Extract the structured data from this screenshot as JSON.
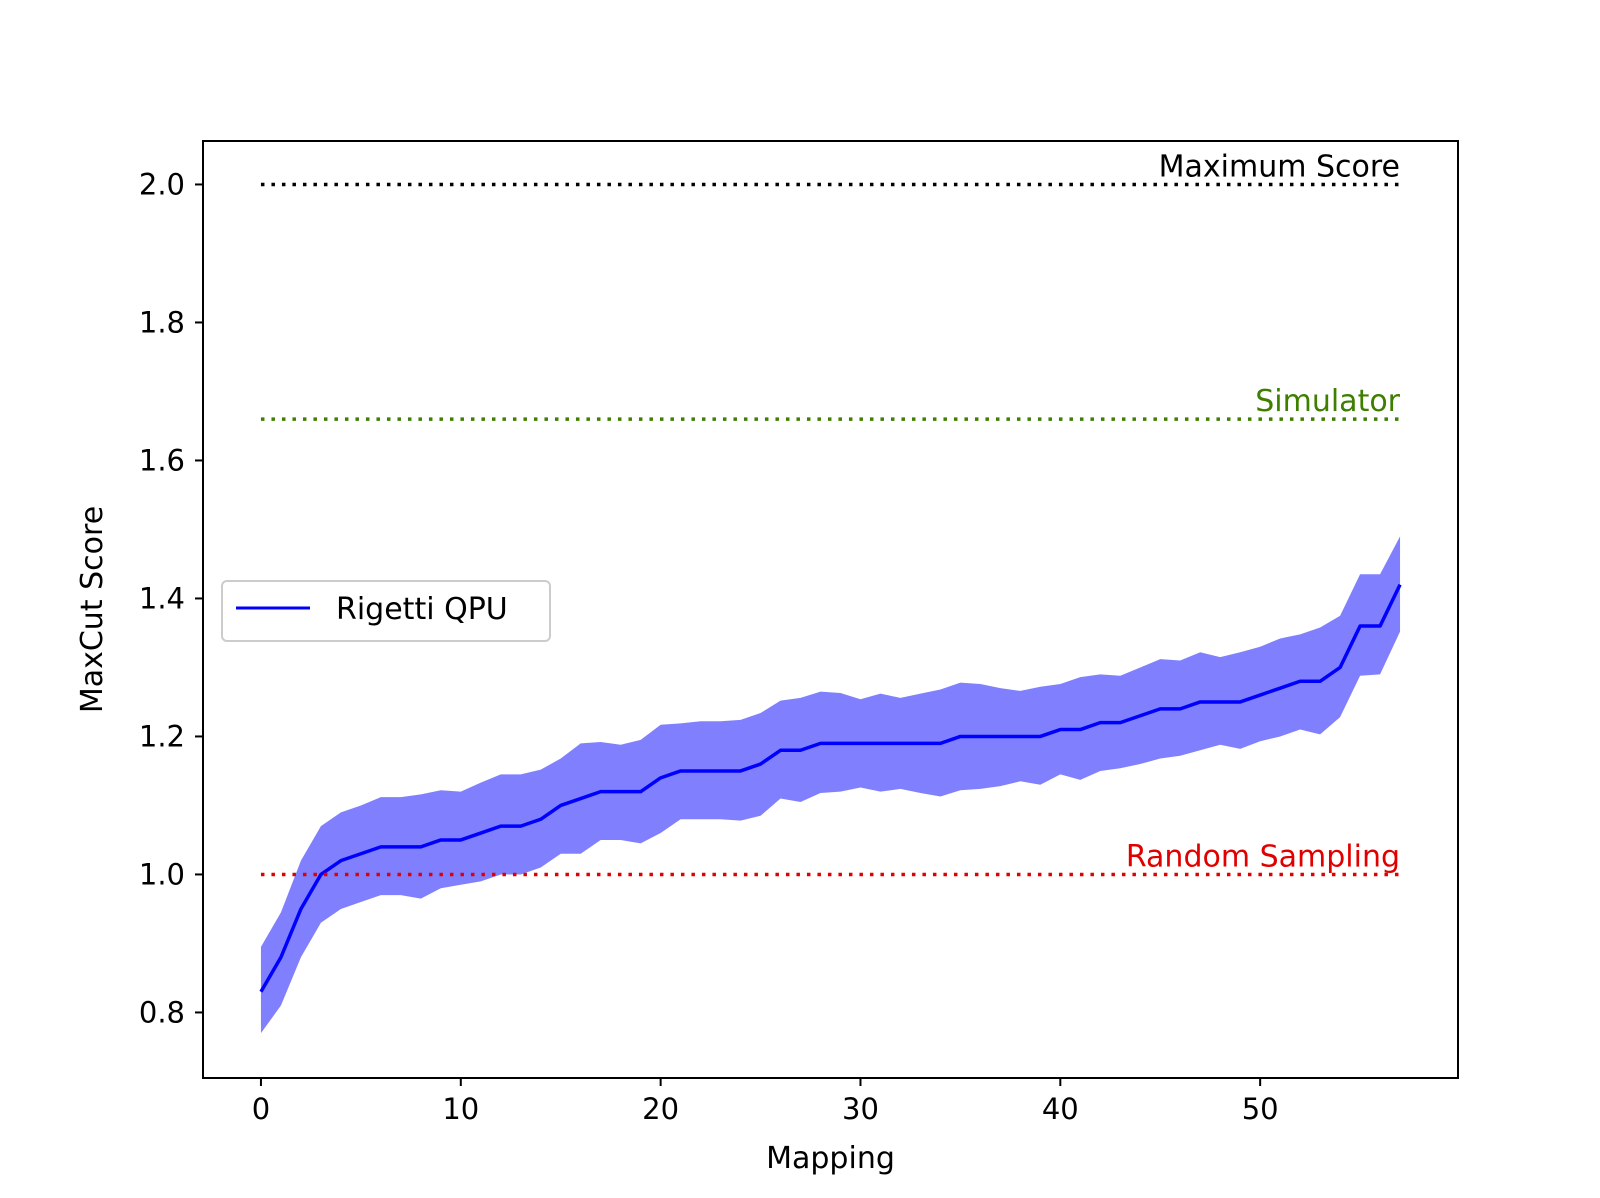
{
  "chart_data": {
    "type": "line",
    "xlabel": "Mapping",
    "ylabel": "MaxCut Score",
    "xlim": [
      -2.9,
      59.9
    ],
    "ylim": [
      0.705,
      2.063
    ],
    "xticks": [
      0,
      10,
      20,
      30,
      40,
      50
    ],
    "yticks": [
      0.8,
      1.0,
      1.2,
      1.4,
      1.6,
      1.8,
      2.0
    ],
    "xtick_labels": [
      "0",
      "10",
      "20",
      "30",
      "40",
      "50"
    ],
    "ytick_labels": [
      "0.8",
      "1.0",
      "1.2",
      "1.4",
      "1.6",
      "1.8",
      "2.0"
    ],
    "grid": false,
    "legend": {
      "position": "center-left",
      "entries": [
        "Rigetti QPU"
      ]
    },
    "series": [
      {
        "name": "Rigetti QPU",
        "color": "#0000ff",
        "band_color": "#8080ff",
        "x": [
          0,
          1,
          2,
          3,
          4,
          5,
          6,
          7,
          8,
          9,
          10,
          11,
          12,
          13,
          14,
          15,
          16,
          17,
          18,
          19,
          20,
          21,
          22,
          23,
          24,
          25,
          26,
          27,
          28,
          29,
          30,
          31,
          32,
          33,
          34,
          35,
          36,
          37,
          38,
          39,
          40,
          41,
          42,
          43,
          44,
          45,
          46,
          47,
          48,
          49,
          50,
          51,
          52,
          53,
          54,
          55,
          56,
          57
        ],
        "values": [
          0.83,
          0.88,
          0.95,
          1.0,
          1.02,
          1.03,
          1.04,
          1.04,
          1.04,
          1.05,
          1.05,
          1.06,
          1.07,
          1.07,
          1.08,
          1.1,
          1.11,
          1.12,
          1.12,
          1.12,
          1.14,
          1.15,
          1.15,
          1.15,
          1.15,
          1.16,
          1.18,
          1.18,
          1.19,
          1.19,
          1.19,
          1.19,
          1.19,
          1.19,
          1.19,
          1.2,
          1.2,
          1.2,
          1.2,
          1.2,
          1.21,
          1.21,
          1.22,
          1.22,
          1.23,
          1.24,
          1.24,
          1.25,
          1.25,
          1.25,
          1.26,
          1.27,
          1.28,
          1.28,
          1.3,
          1.36,
          1.36,
          1.42
        ],
        "lower": [
          0.77,
          0.81,
          0.88,
          0.93,
          0.95,
          0.96,
          0.97,
          0.97,
          0.965,
          0.98,
          0.985,
          0.99,
          1.0,
          1.0,
          1.01,
          1.03,
          1.03,
          1.05,
          1.05,
          1.045,
          1.06,
          1.08,
          1.08,
          1.08,
          1.078,
          1.085,
          1.11,
          1.105,
          1.118,
          1.12,
          1.126,
          1.12,
          1.124,
          1.118,
          1.113,
          1.122,
          1.124,
          1.128,
          1.135,
          1.13,
          1.145,
          1.137,
          1.15,
          1.154,
          1.16,
          1.168,
          1.172,
          1.18,
          1.188,
          1.182,
          1.193,
          1.2,
          1.21,
          1.203,
          1.228,
          1.288,
          1.29,
          1.352
        ],
        "upper": [
          0.895,
          0.945,
          1.02,
          1.07,
          1.09,
          1.1,
          1.112,
          1.112,
          1.116,
          1.122,
          1.12,
          1.133,
          1.145,
          1.145,
          1.152,
          1.168,
          1.19,
          1.192,
          1.188,
          1.195,
          1.217,
          1.219,
          1.222,
          1.222,
          1.224,
          1.234,
          1.252,
          1.256,
          1.265,
          1.263,
          1.254,
          1.262,
          1.256,
          1.262,
          1.268,
          1.278,
          1.276,
          1.27,
          1.266,
          1.272,
          1.276,
          1.286,
          1.29,
          1.288,
          1.3,
          1.312,
          1.31,
          1.322,
          1.315,
          1.322,
          1.33,
          1.342,
          1.348,
          1.358,
          1.375,
          1.435,
          1.435,
          1.49
        ]
      }
    ],
    "reference_lines": [
      {
        "label": "Maximum Score",
        "y": 2.0,
        "x_start": 0,
        "x_end": 57,
        "color": "#000000",
        "style": "dotted"
      },
      {
        "label": "Simulator",
        "y": 1.66,
        "x_start": 0,
        "x_end": 57,
        "color": "#3f7f00",
        "style": "dotted"
      },
      {
        "label": "Random Sampling",
        "y": 1.0,
        "x_start": 0,
        "x_end": 57,
        "color": "#e00000",
        "style": "dotted"
      }
    ]
  }
}
